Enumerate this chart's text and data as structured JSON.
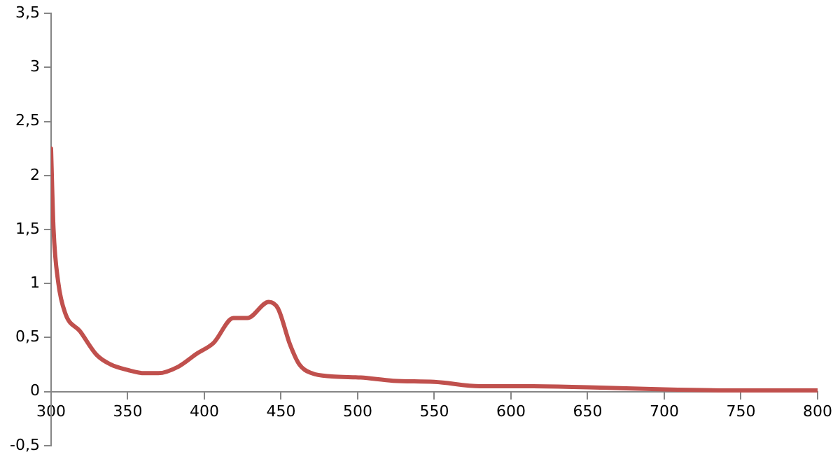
{
  "chart_data": {
    "type": "line",
    "x": [
      300,
      301.6,
      304.7,
      309.4,
      318.8,
      329.7,
      339,
      350,
      361,
      370,
      383,
      395,
      406,
      419,
      428,
      442,
      448,
      456,
      462,
      470,
      483,
      502,
      523,
      550,
      580,
      600,
      650,
      700,
      750,
      800
    ],
    "series": [
      {
        "color": "#c0504d",
        "values": [
          2.25,
          1.51,
          1.01,
          0.72,
          0.56,
          0.34,
          0.25,
          0.2,
          0.17,
          0.17,
          0.23,
          0.35,
          0.45,
          0.68,
          0.68,
          0.83,
          0.77,
          0.43,
          0.25,
          0.17,
          0.14,
          0.13,
          0.1,
          0.09,
          0.05,
          0.05,
          0.04,
          0.02,
          0.01,
          0.01
        ]
      }
    ],
    "xlim": [
      300,
      800
    ],
    "xticks": [
      300,
      350,
      400,
      450,
      500,
      550,
      600,
      650,
      700,
      750,
      800
    ],
    "ylim": [
      -0.5,
      3.5
    ],
    "yticks": [
      {
        "value": -0.5,
        "label": "-0,5"
      },
      0,
      {
        "value": 0.5,
        "label": "0,5"
      },
      1,
      {
        "value": 1.5,
        "label": "1,5"
      },
      2,
      {
        "value": 2.5,
        "label": "2,5"
      },
      3,
      {
        "value": 3.5,
        "label": "3,5"
      }
    ],
    "grid": false,
    "legend": false,
    "marker": "none",
    "line_style": "solid"
  }
}
